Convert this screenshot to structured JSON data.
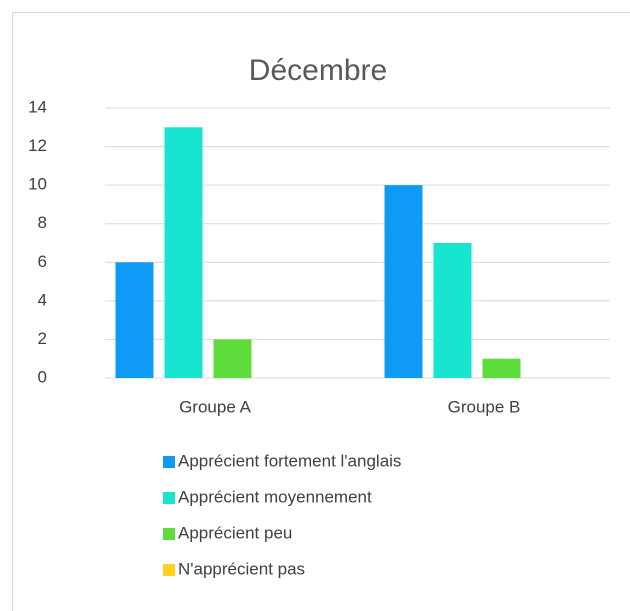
{
  "chart_data": {
    "type": "bar",
    "title": "Décembre",
    "categories": [
      "Groupe A",
      "Groupe B"
    ],
    "series": [
      {
        "name": "Apprécient fortement l'anglais",
        "color": "#0f9bf5",
        "values": [
          6,
          10
        ]
      },
      {
        "name": "Apprécient moyennement",
        "color": "#17e5d0",
        "values": [
          13,
          7
        ]
      },
      {
        "name": "Apprécient peu",
        "color": "#5ddc3c",
        "values": [
          2,
          1
        ]
      },
      {
        "name": "N'apprécient pas",
        "color": "#ffd21e",
        "values": [
          0,
          0
        ]
      }
    ],
    "ylim": [
      0,
      14
    ],
    "yticks": [
      0,
      2,
      4,
      6,
      8,
      10,
      12,
      14
    ],
    "grid": true,
    "legend": "bottom"
  }
}
